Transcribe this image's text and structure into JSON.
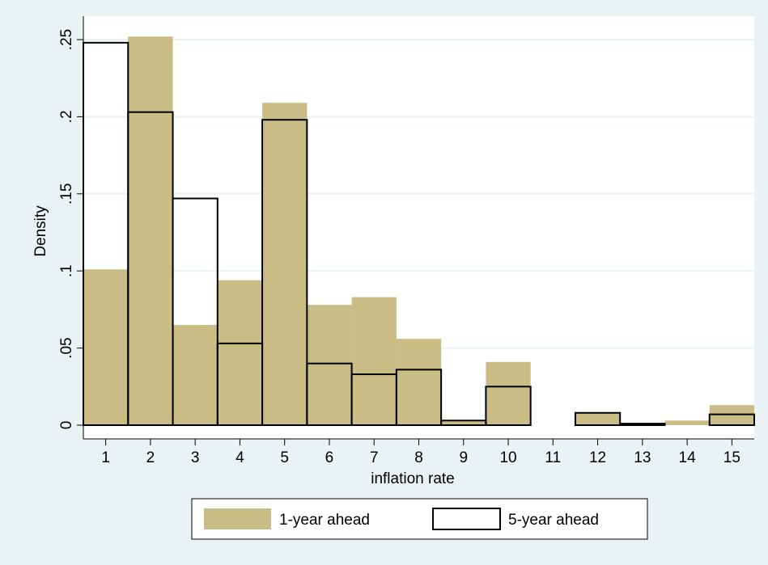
{
  "chart_data": {
    "type": "bar",
    "subtype": "overlaid-histogram",
    "title": "",
    "xlabel": "inflation rate",
    "ylabel": "Density",
    "categories": [
      "1",
      "2",
      "3",
      "4",
      "5",
      "6",
      "7",
      "8",
      "9",
      "10",
      "11",
      "12",
      "13",
      "14",
      "15"
    ],
    "xlim": [
      0.5,
      15.5
    ],
    "ylim": [
      0,
      0.25
    ],
    "yticks": [
      0,
      0.05,
      0.1,
      0.15,
      0.2,
      0.25
    ],
    "ytick_labels": [
      "0",
      ".05",
      ".1",
      ".15",
      ".2",
      ".25"
    ],
    "grid": true,
    "legend_position": "bottom",
    "series": [
      {
        "name": "1-year ahead",
        "style": "filled",
        "color": "#c9bd85",
        "values": [
          0.101,
          0.252,
          0.065,
          0.094,
          0.209,
          0.078,
          0.083,
          0.056,
          0.003,
          0.041,
          0.0,
          0.008,
          0.001,
          0.003,
          0.013
        ]
      },
      {
        "name": "5-year ahead",
        "style": "outline",
        "color": "#000000",
        "values": [
          0.248,
          0.203,
          0.147,
          0.053,
          0.198,
          0.04,
          0.033,
          0.036,
          0.003,
          0.025,
          0.0,
          0.008,
          0.001,
          0.0,
          0.007
        ]
      }
    ]
  },
  "colors": {
    "page_background": "#eaf2f3",
    "plot_background": "#ffffff",
    "gridline": "#eaf2f3",
    "fill_series": "#c9bd85"
  }
}
